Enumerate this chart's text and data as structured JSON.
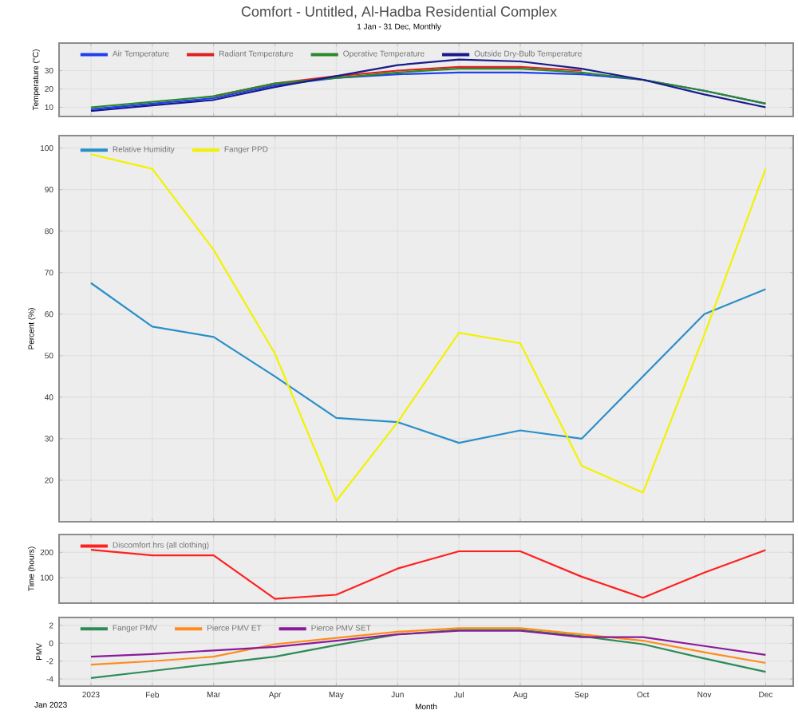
{
  "chart_data": [
    {
      "type": "line",
      "title": "Comfort - Untitled, Al-Hadba Residential Complex",
      "subtitle": "1 Jan - 31 Dec, Monthly",
      "ylabel": "Temperature (°C)",
      "ylim": [
        5,
        45
      ],
      "yticks": [
        10,
        20,
        30
      ],
      "grid": true,
      "legend": "top left",
      "marker": "none",
      "tick_labels": "y",
      "series": [
        {
          "name": "Air Temperature",
          "color": "#2040f0",
          "values": [
            9,
            12,
            15,
            22,
            26,
            28,
            29,
            29,
            28,
            25,
            19,
            12
          ]
        },
        {
          "name": "Radiant Temperature",
          "color": "#e02020",
          "values": [
            null,
            null,
            16,
            23,
            27,
            30,
            32,
            32,
            30,
            null,
            null,
            null
          ]
        },
        {
          "name": "Operative Temperature",
          "color": "#2a8a2a",
          "values": [
            10,
            13,
            16,
            23,
            26,
            29,
            31,
            31,
            29,
            25,
            19,
            12
          ]
        },
        {
          "name": "Outside Dry-Bulb Temperature",
          "color": "#1a1a8c",
          "values": [
            8,
            11,
            14,
            21,
            27,
            33,
            36,
            35,
            31,
            25,
            17,
            10
          ]
        }
      ]
    },
    {
      "type": "line",
      "ylabel": "Percent (%)",
      "ylim": [
        10,
        103
      ],
      "yticks": [
        20,
        30,
        40,
        50,
        60,
        70,
        80,
        90,
        100
      ],
      "grid": true,
      "legend": "top left",
      "marker": "none",
      "tick_labels": "y",
      "series": [
        {
          "name": "Relative Humidity",
          "color": "#2a8fc8",
          "values": [
            67.5,
            57,
            54.5,
            45,
            35,
            34,
            29,
            32,
            30,
            45,
            60,
            66
          ]
        },
        {
          "name": "Fanger PPD",
          "color": "#f2f200",
          "values": [
            98.5,
            95,
            75.5,
            50.5,
            15,
            34,
            55.5,
            53,
            23.5,
            17,
            55,
            95
          ]
        }
      ]
    },
    {
      "type": "line",
      "ylabel": "Time (hours)",
      "ylim": [
        0,
        270
      ],
      "yticks": [
        100,
        200
      ],
      "grid": true,
      "legend": "top left",
      "marker": "none",
      "tick_labels": "y",
      "series": [
        {
          "name": "Discomfort hrs (all clothing)",
          "color": "#ff2020",
          "values": [
            210,
            188,
            188,
            17,
            33,
            136,
            204,
            204,
            104,
            21,
            120,
            209
          ]
        }
      ]
    },
    {
      "type": "line",
      "xlabel": "Month",
      "ylabel": "PMV",
      "categories": [
        "2023",
        "Feb",
        "Mar",
        "Apr",
        "May",
        "Jun",
        "Jul",
        "Aug",
        "Sep",
        "Oct",
        "Nov",
        "Dec"
      ],
      "ylim": [
        -4.8,
        2.9
      ],
      "yticks": [
        -4,
        -2,
        0,
        2
      ],
      "grid": true,
      "legend": "top left",
      "marker": "none",
      "annotations": [
        "Jan 2023"
      ],
      "series": [
        {
          "name": "Fanger PMV",
          "color": "#2e8b57",
          "values": [
            -3.9,
            -3.1,
            -2.3,
            -1.5,
            -0.2,
            1.0,
            1.5,
            1.5,
            0.8,
            -0.1,
            -1.7,
            -3.2
          ]
        },
        {
          "name": "Pierce PMV ET",
          "color": "#ff8c1a",
          "values": [
            -2.4,
            -2.0,
            -1.5,
            -0.1,
            0.6,
            1.3,
            1.7,
            1.7,
            1.0,
            0.3,
            -1.0,
            -2.2
          ]
        },
        {
          "name": "Pierce PMV SET",
          "color": "#8b1a9b",
          "values": [
            -1.5,
            -1.2,
            -0.8,
            -0.4,
            0.3,
            1.0,
            1.4,
            1.4,
            0.7,
            0.7,
            -0.3,
            -1.3
          ]
        }
      ]
    }
  ]
}
